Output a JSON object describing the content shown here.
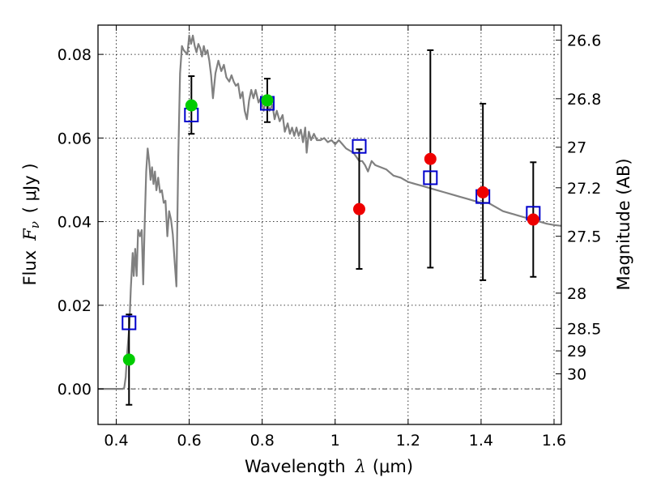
{
  "chart_data": {
    "type": "scatter",
    "title": "",
    "xlabel_text": "Wavelength",
    "xlabel_math": "λ",
    "xlabel_unit": "(μm)",
    "ylabel_text": "Flux",
    "ylabel_math": "F",
    "ylabel_sub": "ν",
    "ylabel_unit": "( μJy )",
    "y2label": "Magnitude (AB)",
    "xlim": [
      0.35,
      1.62
    ],
    "ylim": [
      -0.0085,
      0.087
    ],
    "x_ticks": [
      0.4,
      0.6,
      0.8,
      1.0,
      1.2,
      1.4,
      1.6
    ],
    "x_tick_labels": [
      "0.4",
      "0.6",
      "0.8",
      "1",
      "1.2",
      "1.4",
      "1.6"
    ],
    "y_ticks": [
      0.0,
      0.02,
      0.04,
      0.06,
      0.08
    ],
    "y_tick_labels": [
      "0.00",
      "0.02",
      "0.04",
      "0.06",
      "0.08"
    ],
    "y2_ticks": [
      {
        "label": "26.6",
        "flux": 0.0834
      },
      {
        "label": "26.8",
        "flux": 0.0694
      },
      {
        "label": "27",
        "flux": 0.0578
      },
      {
        "label": "27.2",
        "flux": 0.0481
      },
      {
        "label": "27.5",
        "flux": 0.0365
      },
      {
        "label": "28",
        "flux": 0.0229
      },
      {
        "label": "28.5",
        "flux": 0.0145
      },
      {
        "label": "29",
        "flux": 0.0091
      },
      {
        "label": "30",
        "flux": 0.0036
      }
    ],
    "grid": true,
    "zero_line": true,
    "model_sed": {
      "color": "#808080",
      "points": [
        [
          0.35,
          0.0
        ],
        [
          0.418,
          0.0
        ],
        [
          0.422,
          0.0003
        ],
        [
          0.426,
          0.0028
        ],
        [
          0.43,
          0.0085
        ],
        [
          0.436,
          0.015
        ],
        [
          0.44,
          0.024
        ],
        [
          0.445,
          0.0325
        ],
        [
          0.448,
          0.027
        ],
        [
          0.452,
          0.0335
        ],
        [
          0.456,
          0.027
        ],
        [
          0.46,
          0.038
        ],
        [
          0.465,
          0.0365
        ],
        [
          0.47,
          0.038
        ],
        [
          0.474,
          0.025
        ],
        [
          0.478,
          0.04
        ],
        [
          0.482,
          0.052
        ],
        [
          0.486,
          0.0575
        ],
        [
          0.49,
          0.0545
        ],
        [
          0.494,
          0.05
        ],
        [
          0.498,
          0.053
        ],
        [
          0.502,
          0.049
        ],
        [
          0.506,
          0.052
        ],
        [
          0.51,
          0.0475
        ],
        [
          0.515,
          0.0505
        ],
        [
          0.52,
          0.047
        ],
        [
          0.525,
          0.0475
        ],
        [
          0.53,
          0.0445
        ],
        [
          0.535,
          0.045
        ],
        [
          0.54,
          0.0365
        ],
        [
          0.545,
          0.0425
        ],
        [
          0.55,
          0.0405
        ],
        [
          0.555,
          0.037
        ],
        [
          0.56,
          0.0305
        ],
        [
          0.565,
          0.0245
        ],
        [
          0.57,
          0.0555
        ],
        [
          0.575,
          0.0755
        ],
        [
          0.58,
          0.082
        ],
        [
          0.585,
          0.081
        ],
        [
          0.59,
          0.0805
        ],
        [
          0.595,
          0.08
        ],
        [
          0.6,
          0.0845
        ],
        [
          0.605,
          0.0825
        ],
        [
          0.61,
          0.0845
        ],
        [
          0.615,
          0.082
        ],
        [
          0.62,
          0.0805
        ],
        [
          0.625,
          0.0825
        ],
        [
          0.63,
          0.0815
        ],
        [
          0.635,
          0.0795
        ],
        [
          0.64,
          0.082
        ],
        [
          0.645,
          0.08
        ],
        [
          0.65,
          0.081
        ],
        [
          0.655,
          0.0785
        ],
        [
          0.66,
          0.075
        ],
        [
          0.665,
          0.0695
        ],
        [
          0.672,
          0.0755
        ],
        [
          0.68,
          0.0785
        ],
        [
          0.688,
          0.076
        ],
        [
          0.695,
          0.0775
        ],
        [
          0.702,
          0.0745
        ],
        [
          0.71,
          0.0735
        ],
        [
          0.716,
          0.075
        ],
        [
          0.722,
          0.0735
        ],
        [
          0.728,
          0.0725
        ],
        [
          0.734,
          0.073
        ],
        [
          0.74,
          0.0695
        ],
        [
          0.746,
          0.071
        ],
        [
          0.752,
          0.0665
        ],
        [
          0.758,
          0.0645
        ],
        [
          0.764,
          0.069
        ],
        [
          0.77,
          0.0715
        ],
        [
          0.776,
          0.0695
        ],
        [
          0.782,
          0.0715
        ],
        [
          0.79,
          0.0685
        ],
        [
          0.796,
          0.0695
        ],
        [
          0.804,
          0.0665
        ],
        [
          0.812,
          0.0695
        ],
        [
          0.82,
          0.0665
        ],
        [
          0.828,
          0.068
        ],
        [
          0.834,
          0.0645
        ],
        [
          0.84,
          0.0665
        ],
        [
          0.848,
          0.064
        ],
        [
          0.856,
          0.0655
        ],
        [
          0.862,
          0.0615
        ],
        [
          0.87,
          0.0635
        ],
        [
          0.876,
          0.061
        ],
        [
          0.882,
          0.0625
        ],
        [
          0.888,
          0.0605
        ],
        [
          0.894,
          0.0625
        ],
        [
          0.9,
          0.0605
        ],
        [
          0.906,
          0.062
        ],
        [
          0.912,
          0.059
        ],
        [
          0.918,
          0.0625
        ],
        [
          0.922,
          0.0565
        ],
        [
          0.928,
          0.0615
        ],
        [
          0.934,
          0.0595
        ],
        [
          0.942,
          0.061
        ],
        [
          0.95,
          0.0595
        ],
        [
          0.96,
          0.0595
        ],
        [
          0.97,
          0.06
        ],
        [
          0.98,
          0.059
        ],
        [
          0.99,
          0.0595
        ],
        [
          1.0,
          0.0585
        ],
        [
          1.01,
          0.0595
        ],
        [
          1.02,
          0.0585
        ],
        [
          1.03,
          0.0575
        ],
        [
          1.04,
          0.057
        ],
        [
          1.05,
          0.0565
        ],
        [
          1.058,
          0.0555
        ],
        [
          1.066,
          0.0545
        ],
        [
          1.074,
          0.0545
        ],
        [
          1.082,
          0.0535
        ],
        [
          1.09,
          0.052
        ],
        [
          1.1,
          0.0545
        ],
        [
          1.11,
          0.0535
        ],
        [
          1.125,
          0.053
        ],
        [
          1.14,
          0.0525
        ],
        [
          1.16,
          0.051
        ],
        [
          1.18,
          0.0505
        ],
        [
          1.2,
          0.0495
        ],
        [
          1.22,
          0.049
        ],
        [
          1.24,
          0.0485
        ],
        [
          1.26,
          0.048
        ],
        [
          1.28,
          0.0475
        ],
        [
          1.3,
          0.047
        ],
        [
          1.32,
          0.0465
        ],
        [
          1.34,
          0.046
        ],
        [
          1.36,
          0.0455
        ],
        [
          1.38,
          0.045
        ],
        [
          1.4,
          0.0445
        ],
        [
          1.42,
          0.0445
        ],
        [
          1.44,
          0.0435
        ],
        [
          1.46,
          0.0425
        ],
        [
          1.48,
          0.042
        ],
        [
          1.5,
          0.0415
        ],
        [
          1.52,
          0.041
        ],
        [
          1.54,
          0.0405
        ],
        [
          1.56,
          0.04
        ],
        [
          1.58,
          0.0395
        ],
        [
          1.6,
          0.0392
        ],
        [
          1.62,
          0.039
        ]
      ]
    },
    "model_bandpass": {
      "color": "#0000cc",
      "points": [
        {
          "x": 0.435,
          "y": 0.0158
        },
        {
          "x": 0.606,
          "y": 0.0655
        },
        {
          "x": 0.814,
          "y": 0.0683
        },
        {
          "x": 1.066,
          "y": 0.058
        },
        {
          "x": 1.261,
          "y": 0.0505
        },
        {
          "x": 1.405,
          "y": 0.046
        },
        {
          "x": 1.543,
          "y": 0.042
        }
      ]
    },
    "observed": [
      {
        "x": 0.435,
        "y": 0.007,
        "ylow": -0.0038,
        "yhigh": 0.0178,
        "color": "#00cc00"
      },
      {
        "x": 0.606,
        "y": 0.0678,
        "ylow": 0.061,
        "yhigh": 0.0748,
        "color": "#00cc00"
      },
      {
        "x": 0.814,
        "y": 0.069,
        "ylow": 0.0638,
        "yhigh": 0.0742,
        "color": "#00cc00"
      },
      {
        "x": 1.066,
        "y": 0.043,
        "ylow": 0.0287,
        "yhigh": 0.0573,
        "color": "#ee0000"
      },
      {
        "x": 1.261,
        "y": 0.055,
        "ylow": 0.029,
        "yhigh": 0.081,
        "color": "#ee0000"
      },
      {
        "x": 1.405,
        "y": 0.047,
        "ylow": 0.026,
        "yhigh": 0.0682,
        "color": "#ee0000"
      },
      {
        "x": 1.543,
        "y": 0.0405,
        "ylow": 0.0268,
        "yhigh": 0.0542,
        "color": "#ee0000"
      }
    ]
  }
}
